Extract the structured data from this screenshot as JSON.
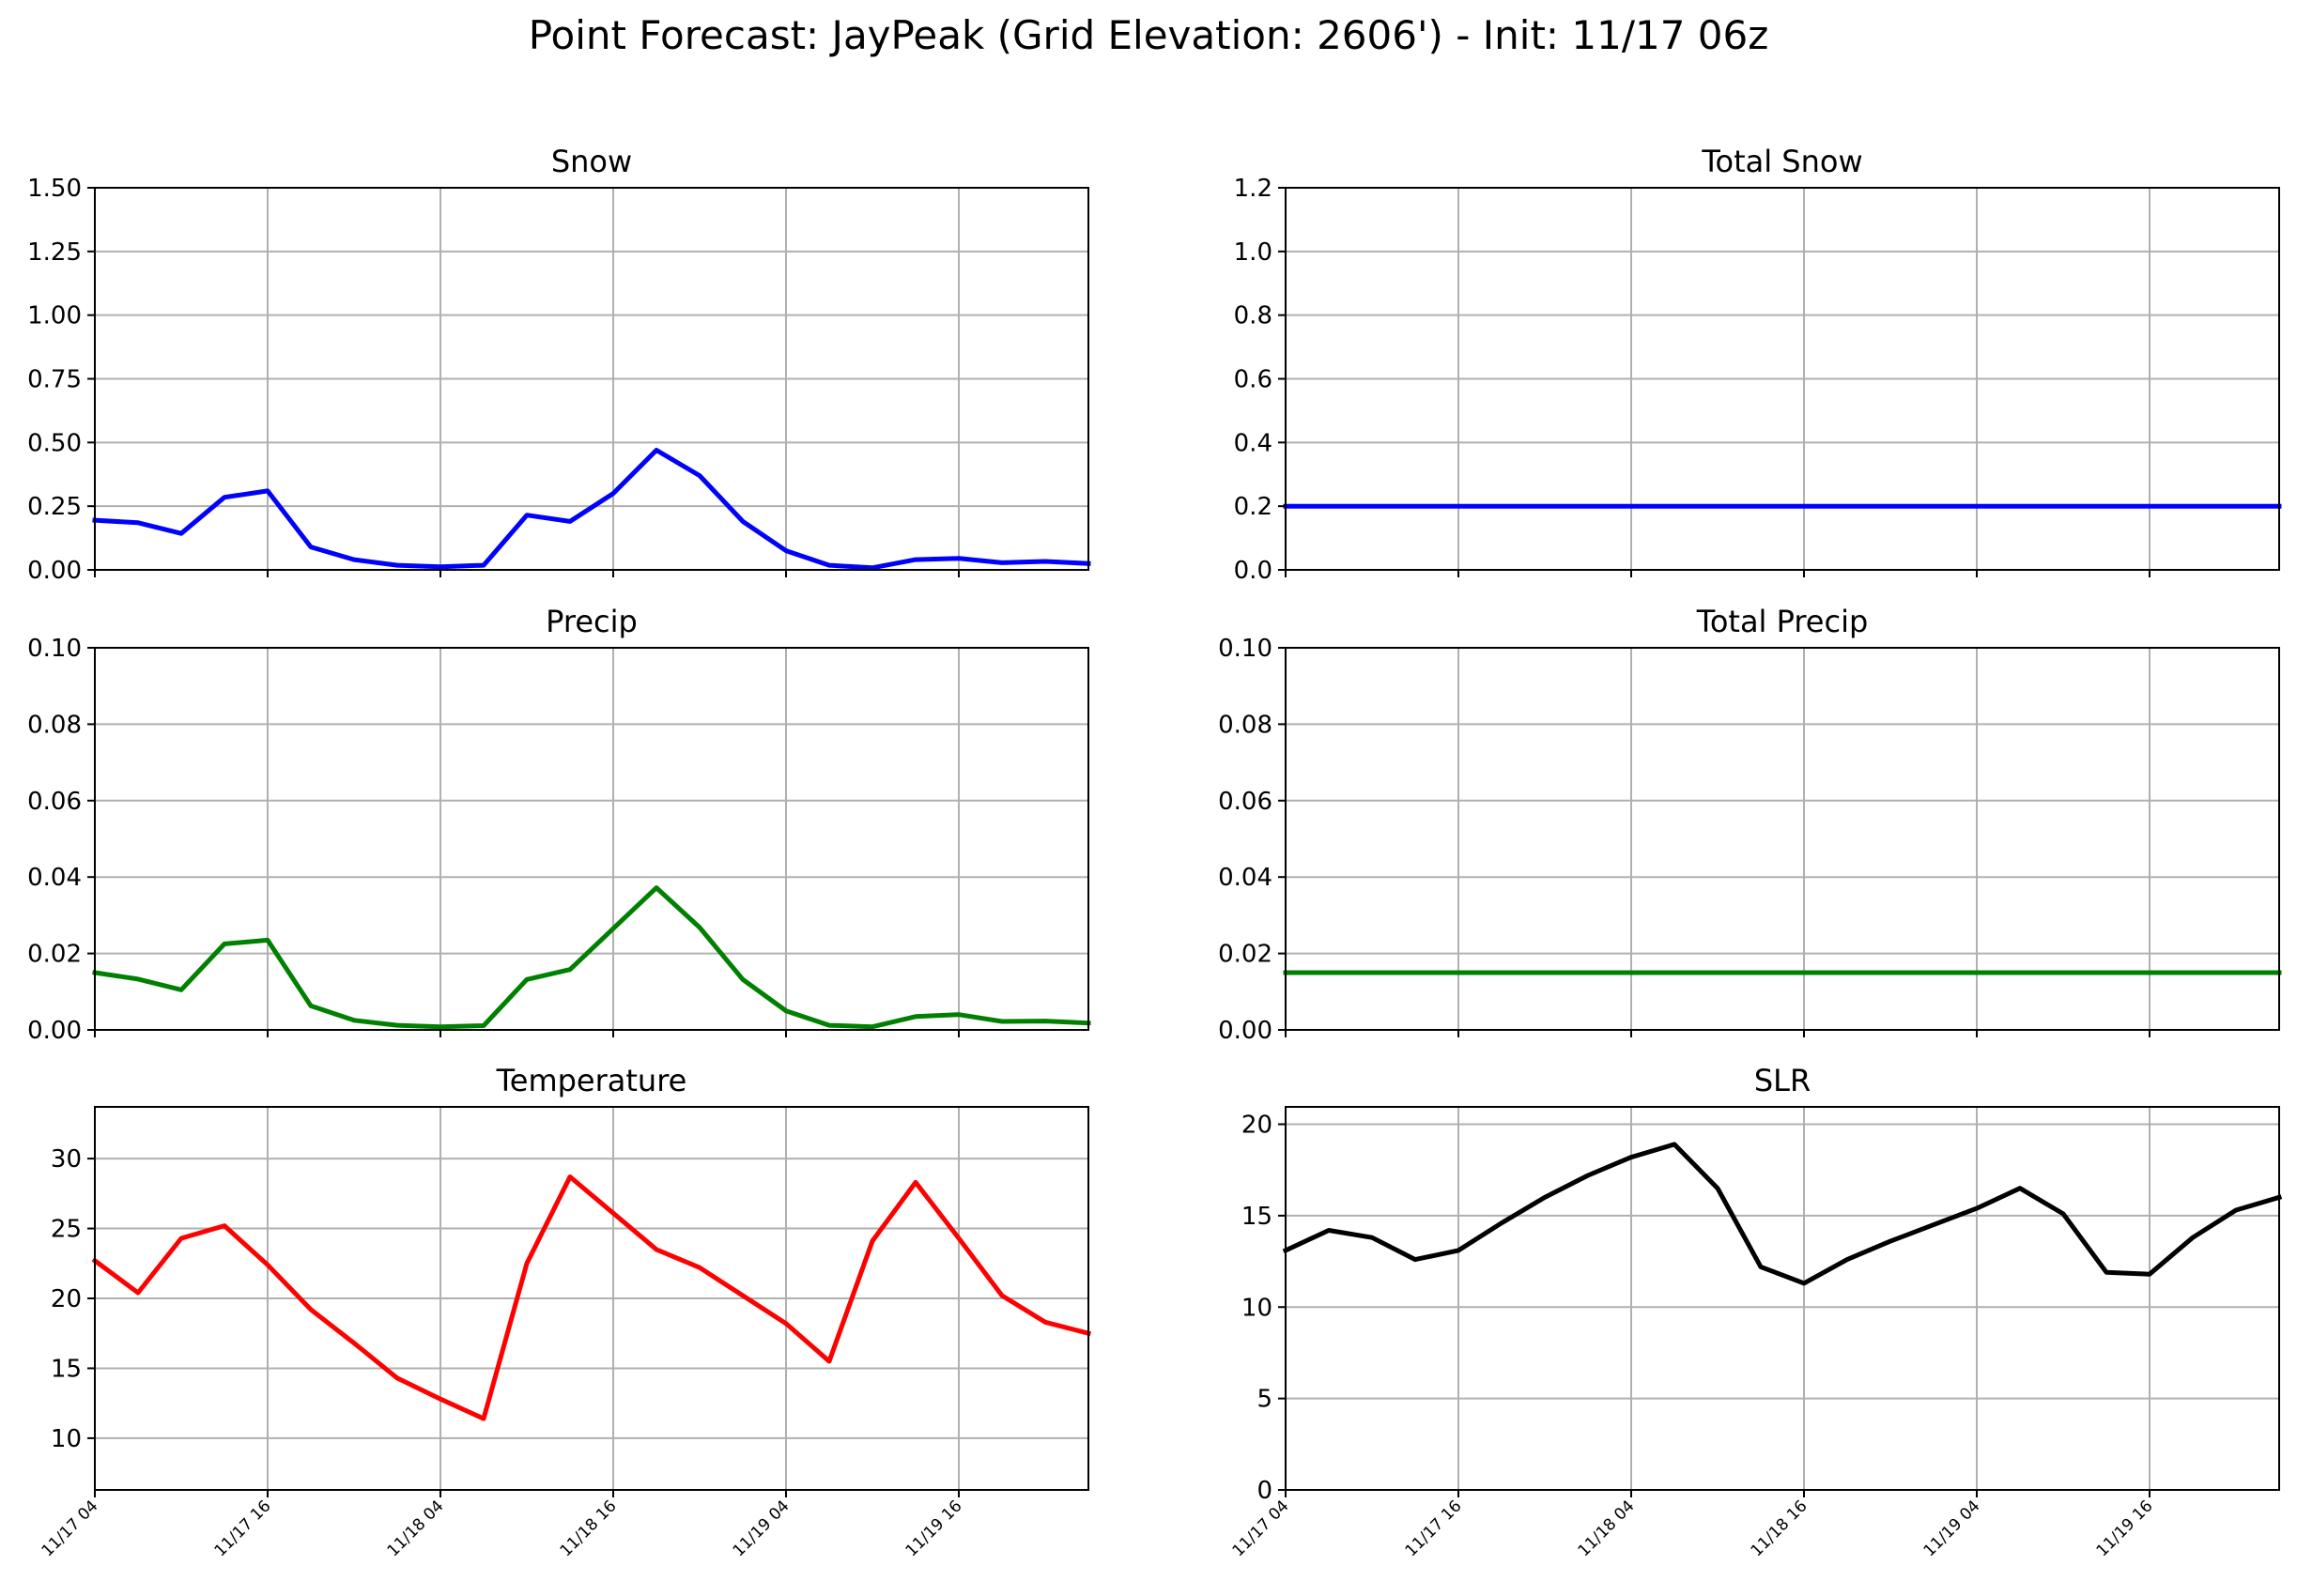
{
  "figure": {
    "title": "Point Forecast: JayPeak (Grid Elevation: 2606') - Init: 11/17 06z"
  },
  "chart_data": [
    {
      "id": "snow",
      "type": "line",
      "title": "Snow",
      "color": "#0000ff",
      "xlim": [
        0,
        23
      ],
      "ylim": [
        0,
        1.5
      ],
      "yticks": [
        0,
        0.25,
        0.5,
        0.75,
        1.0,
        1.25,
        1.5
      ],
      "ytick_labels": [
        "0.00",
        "0.25",
        "0.50",
        "0.75",
        "1.00",
        "1.25",
        "1.50"
      ],
      "show_xticklabels": false,
      "x": [
        0,
        1,
        2,
        3,
        4,
        5,
        6,
        7,
        8,
        9,
        10,
        11,
        12,
        13,
        14,
        15,
        16,
        17,
        18,
        19,
        20,
        21,
        22,
        23
      ],
      "values": [
        0.195,
        0.185,
        0.143,
        0.285,
        0.31,
        0.09,
        0.04,
        0.018,
        0.012,
        0.018,
        0.215,
        0.19,
        0.3,
        0.47,
        0.37,
        0.19,
        0.075,
        0.018,
        0.008,
        0.04,
        0.045,
        0.028,
        0.033,
        0.025
      ],
      "grid": true
    },
    {
      "id": "total-snow",
      "type": "line",
      "title": "Total Snow",
      "color": "#0000ff",
      "xlim": [
        0,
        23
      ],
      "ylim": [
        0,
        1.2
      ],
      "yticks": [
        0,
        0.2,
        0.4,
        0.6,
        0.8,
        1.0,
        1.2
      ],
      "ytick_labels": [
        "0.0",
        "0.2",
        "0.4",
        "0.6",
        "0.8",
        "1.0",
        "1.2"
      ],
      "show_xticklabels": false,
      "x": [
        0,
        1,
        2,
        3,
        4,
        5,
        6,
        7,
        8,
        9,
        10,
        11,
        12,
        13,
        14,
        15,
        16,
        17,
        18,
        19,
        20,
        21,
        22,
        23
      ],
      "values": [
        0.2,
        0.2,
        0.2,
        0.2,
        0.2,
        0.2,
        0.2,
        0.2,
        0.2,
        0.2,
        0.2,
        0.2,
        0.2,
        0.2,
        0.2,
        0.2,
        0.2,
        0.2,
        0.2,
        0.2,
        0.2,
        0.2,
        0.2,
        0.2
      ],
      "grid": true
    },
    {
      "id": "precip",
      "type": "line",
      "title": "Precip",
      "color": "#008000",
      "xlim": [
        0,
        23
      ],
      "ylim": [
        0,
        0.1
      ],
      "yticks": [
        0,
        0.02,
        0.04,
        0.06,
        0.08,
        0.1
      ],
      "ytick_labels": [
        "0.00",
        "0.02",
        "0.04",
        "0.06",
        "0.08",
        "0.10"
      ],
      "show_xticklabels": false,
      "x": [
        0,
        1,
        2,
        3,
        4,
        5,
        6,
        7,
        8,
        9,
        10,
        11,
        12,
        13,
        14,
        15,
        16,
        17,
        18,
        19,
        20,
        21,
        22,
        23
      ],
      "values": [
        0.015,
        0.0133,
        0.0105,
        0.0225,
        0.0235,
        0.0063,
        0.0025,
        0.0012,
        0.0008,
        0.0011,
        0.0132,
        0.0158,
        0.0265,
        0.0372,
        0.0268,
        0.0132,
        0.005,
        0.0012,
        0.0008,
        0.0035,
        0.004,
        0.0022,
        0.0023,
        0.0018
      ],
      "grid": true
    },
    {
      "id": "total-precip",
      "type": "line",
      "title": "Total Precip",
      "color": "#008000",
      "xlim": [
        0,
        23
      ],
      "ylim": [
        0,
        0.1
      ],
      "yticks": [
        0,
        0.02,
        0.04,
        0.06,
        0.08,
        0.1
      ],
      "ytick_labels": [
        "0.00",
        "0.02",
        "0.04",
        "0.06",
        "0.08",
        "0.10"
      ],
      "show_xticklabels": false,
      "x": [
        0,
        1,
        2,
        3,
        4,
        5,
        6,
        7,
        8,
        9,
        10,
        11,
        12,
        13,
        14,
        15,
        16,
        17,
        18,
        19,
        20,
        21,
        22,
        23
      ],
      "values": [
        0.015,
        0.015,
        0.015,
        0.015,
        0.015,
        0.015,
        0.015,
        0.015,
        0.015,
        0.015,
        0.015,
        0.015,
        0.015,
        0.015,
        0.015,
        0.015,
        0.015,
        0.015,
        0.015,
        0.015,
        0.015,
        0.015,
        0.015,
        0.015
      ],
      "grid": true
    },
    {
      "id": "temperature",
      "type": "line",
      "title": "Temperature",
      "color": "#ff0000",
      "xlim": [
        0,
        23
      ],
      "ylim": [
        6.3,
        33.7
      ],
      "yticks": [
        10,
        15,
        20,
        25,
        30
      ],
      "ytick_labels": [
        "10",
        "15",
        "20",
        "25",
        "30"
      ],
      "show_xticklabels": true,
      "x": [
        0,
        1,
        2,
        3,
        4,
        5,
        6,
        7,
        8,
        9,
        10,
        11,
        12,
        13,
        14,
        15,
        16,
        17,
        18,
        19,
        20,
        21,
        22,
        23
      ],
      "values": [
        22.7,
        20.4,
        24.3,
        25.2,
        22.4,
        19.2,
        16.8,
        14.3,
        12.8,
        11.4,
        22.5,
        28.7,
        26.1,
        23.5,
        22.2,
        20.2,
        18.2,
        15.5,
        24.1,
        28.3,
        24.3,
        20.2,
        18.3,
        17.5
      ],
      "grid": true
    },
    {
      "id": "slr",
      "type": "line",
      "title": "SLR",
      "color": "#000000",
      "xlim": [
        0,
        23
      ],
      "ylim": [
        0,
        20.95
      ],
      "yticks": [
        0,
        5,
        10,
        15,
        20
      ],
      "ytick_labels": [
        "0",
        "5",
        "10",
        "15",
        "20"
      ],
      "show_xticklabels": true,
      "x": [
        0,
        1,
        2,
        3,
        4,
        5,
        6,
        7,
        8,
        9,
        10,
        11,
        12,
        13,
        14,
        15,
        16,
        17,
        18,
        19,
        20,
        21,
        22,
        23
      ],
      "values": [
        13.1,
        14.2,
        13.8,
        12.6,
        13.1,
        14.6,
        16.0,
        17.2,
        18.2,
        18.9,
        16.5,
        12.2,
        11.3,
        12.6,
        13.6,
        14.5,
        15.4,
        16.5,
        15.1,
        11.9,
        11.8,
        13.8,
        15.3,
        16.0
      ],
      "grid": true
    }
  ],
  "x_axis": {
    "tick_positions": [
      0,
      4,
      8,
      12,
      16,
      20
    ],
    "tick_labels": [
      "11/17 04",
      "11/17 16",
      "11/18 04",
      "11/18 16",
      "11/19 04",
      "11/19 16"
    ]
  }
}
